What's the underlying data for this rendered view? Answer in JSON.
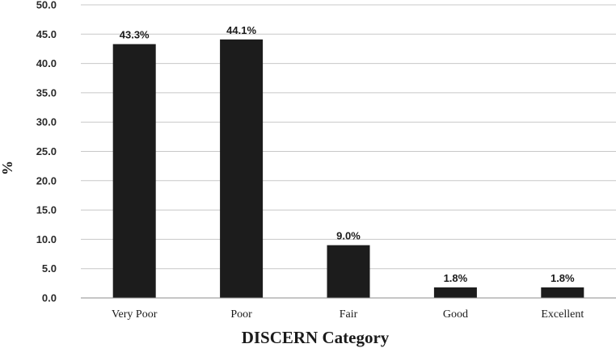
{
  "chart_data": {
    "type": "bar",
    "title": "",
    "xlabel": "DISCERN Category",
    "ylabel": "%",
    "categories": [
      "Very Poor",
      "Poor",
      "Fair",
      "Good",
      "Excellent"
    ],
    "values": [
      43.3,
      44.1,
      9.0,
      1.8,
      1.8
    ],
    "data_labels": [
      "43.3%",
      "44.1%",
      "9.0%",
      "1.8%",
      "1.8%"
    ],
    "yticks": [
      "0.0",
      "5.0",
      "10.0",
      "15.0",
      "20.0",
      "25.0",
      "30.0",
      "35.0",
      "40.0",
      "45.0",
      "50.0"
    ],
    "ylim": [
      0,
      50
    ],
    "grid": true,
    "legend": "none",
    "bar_color": "#1c1c1c"
  }
}
